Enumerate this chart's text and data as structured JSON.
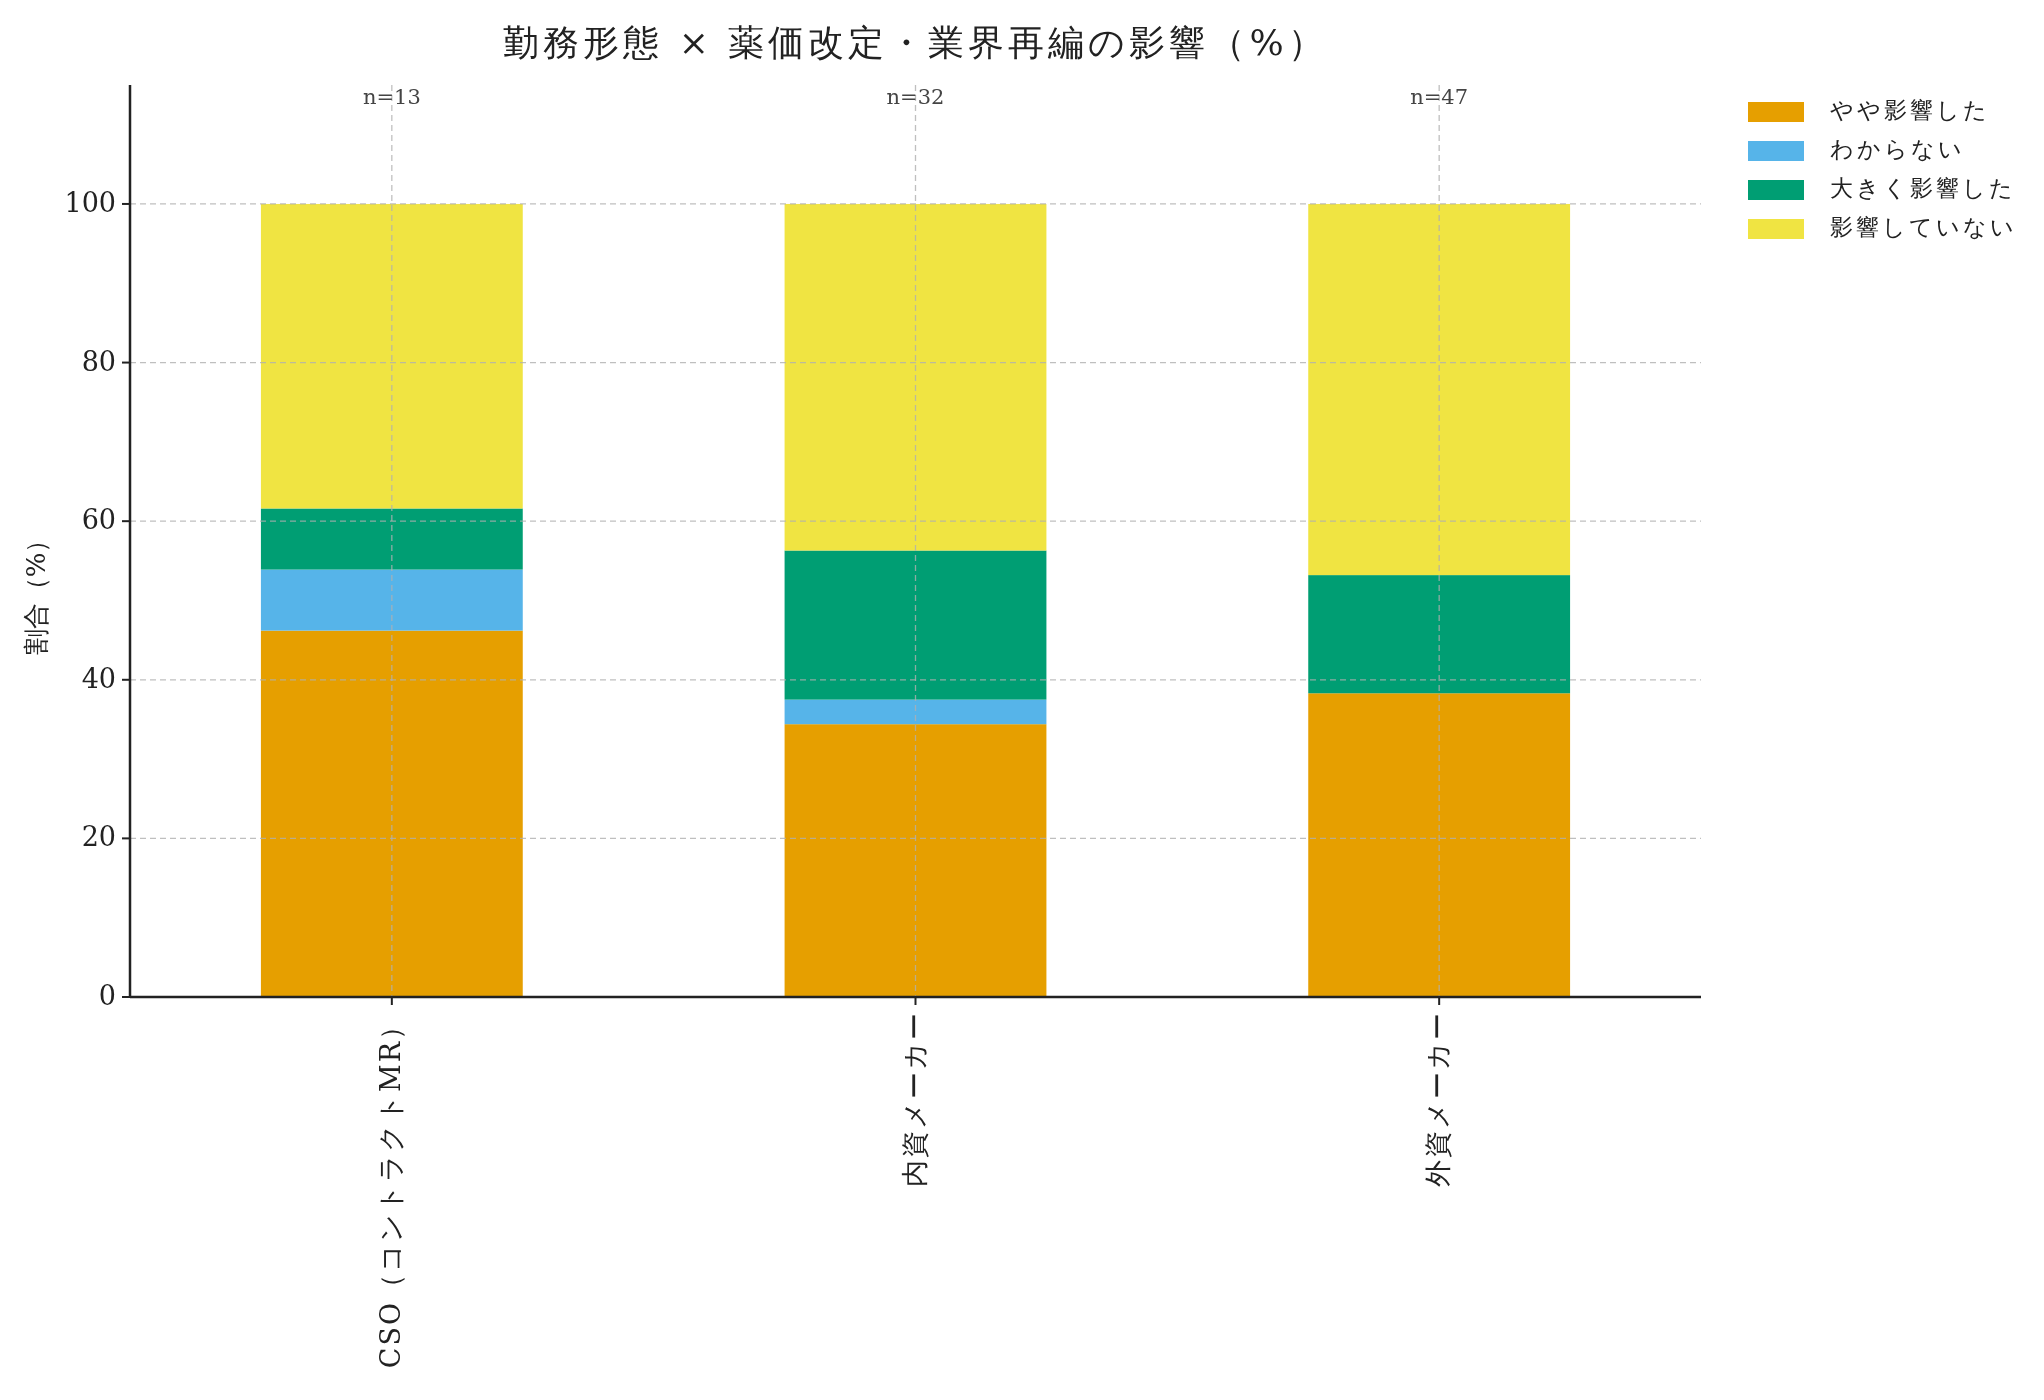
{
  "chart_data": {
    "type": "bar",
    "title": "勤務形態 × 薬価改定・業界再編の影響（%）",
    "ylabel": "割合（%）",
    "categories": [
      "CSO（コントラクトMR）",
      "内資メーカー",
      "外資メーカー"
    ],
    "series": [
      {
        "name": "やや影響した",
        "color": "#e69f00",
        "values": [
          46.2,
          34.4,
          38.3
        ]
      },
      {
        "name": "わからない",
        "color": "#56b4e9",
        "values": [
          7.7,
          3.1,
          0
        ]
      },
      {
        "name": "大きく影響した",
        "color": "#009e73",
        "values": [
          7.7,
          18.8,
          14.9
        ]
      },
      {
        "name": "影響していない",
        "color": "#f0e442",
        "values": [
          38.4,
          43.7,
          46.8
        ]
      }
    ],
    "stacked": true,
    "ylim": [
      0,
      115
    ],
    "yticks": [
      0,
      20,
      40,
      60,
      80,
      100
    ],
    "grid": true,
    "legend": "top right",
    "annotations": [
      "n=13",
      "n=32",
      "n=47"
    ]
  }
}
